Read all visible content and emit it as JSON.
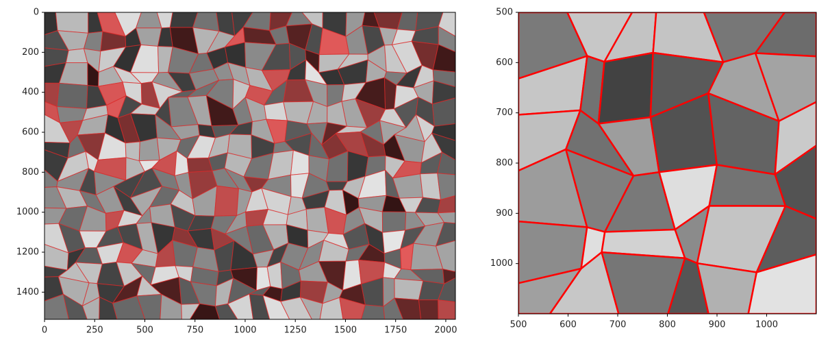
{
  "chart_data": [
    {
      "type": "image",
      "xlim": [
        0,
        2048
      ],
      "ylim": [
        1536,
        0
      ],
      "xticks": [
        0,
        250,
        500,
        750,
        1000,
        1250,
        1500,
        1750,
        2000
      ],
      "yticks": [
        0,
        200,
        400,
        600,
        800,
        1000,
        1200,
        1400
      ]
    },
    {
      "type": "image",
      "xlim": [
        500,
        1100
      ],
      "ylim": [
        1100,
        500
      ],
      "xticks": [
        500,
        600,
        700,
        800,
        900,
        1000
      ],
      "yticks": [
        500,
        600,
        700,
        800,
        900,
        1000
      ]
    }
  ]
}
